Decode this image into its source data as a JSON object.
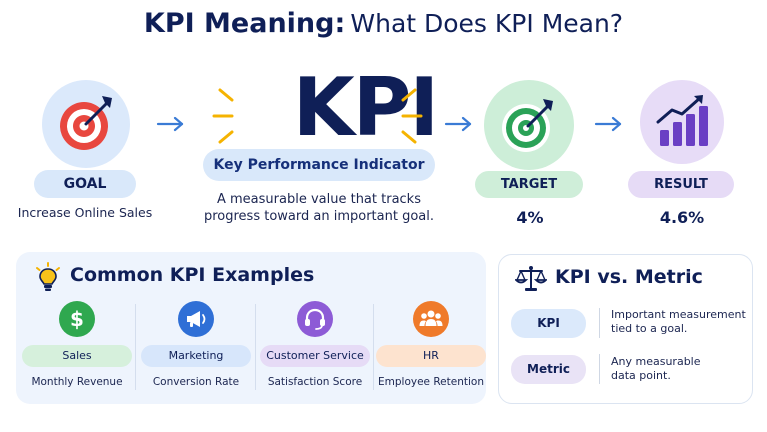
{
  "title": {
    "bold": "KPI Meaning:",
    "rest": "What Does KPI Mean?"
  },
  "flow": {
    "goal": {
      "label": "GOAL",
      "sub": "Increase Online Sales",
      "icon": "dartboard-icon"
    },
    "kpi": {
      "big": "KPI",
      "expansion": "Key Performance Indicator",
      "desc_line1": "A measurable value that tracks",
      "desc_line2": "progress toward an important goal."
    },
    "target": {
      "label": "TARGET",
      "value": "4%",
      "icon": "target-icon"
    },
    "result": {
      "label": "RESULT",
      "value": "4.6%",
      "icon": "growth-chart-icon"
    }
  },
  "examples": {
    "title": "Common KPI Examples",
    "icon": "lightbulb-icon",
    "items": [
      {
        "label": "Sales",
        "sub": "Monthly Revenue",
        "icon": "dollar-icon",
        "color": "#2fa84f",
        "pill": "#d6f0dc"
      },
      {
        "label": "Marketing",
        "sub": "Conversion Rate",
        "icon": "megaphone-icon",
        "color": "#2f6fd6",
        "pill": "#d7e6fb"
      },
      {
        "label": "Customer Service",
        "sub": "Satisfaction Score",
        "icon": "headset-icon",
        "color": "#8d5bd6",
        "pill": "#e6dbf6"
      },
      {
        "label": "HR",
        "sub": "Employee Retention",
        "icon": "people-icon",
        "color": "#ef7a2a",
        "pill": "#fde3cf"
      }
    ]
  },
  "comparison": {
    "title": "KPI vs. Metric",
    "icon": "scales-icon",
    "rows": [
      {
        "term": "KPI",
        "line1": "Important measurement",
        "line2": "tied to a goal."
      },
      {
        "term": "Metric",
        "line1": "Any measurable",
        "line2": "data point."
      }
    ]
  }
}
